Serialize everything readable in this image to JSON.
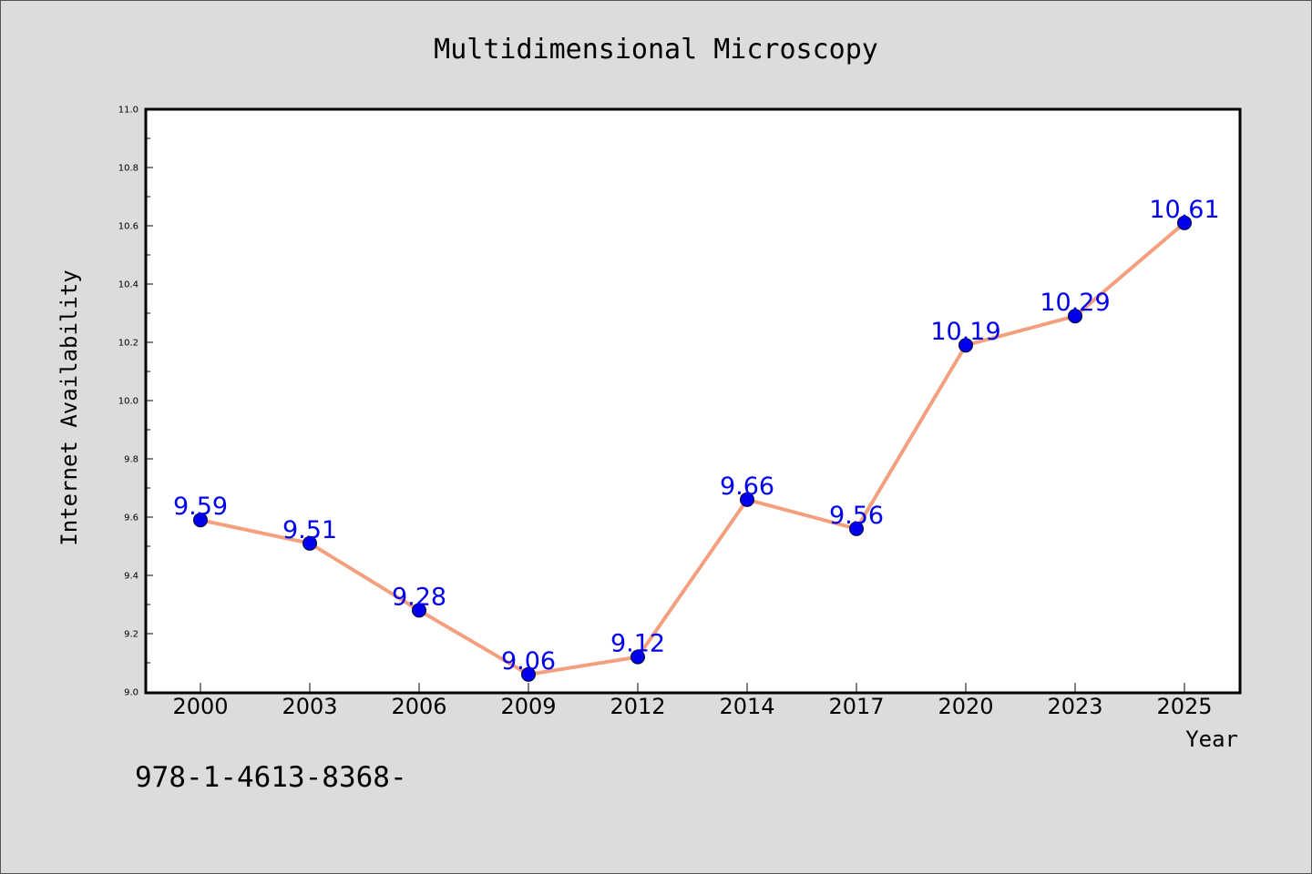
{
  "chart_data": {
    "type": "line",
    "title": "Multidimensional Microscopy",
    "xlabel": "Year",
    "ylabel": "Internet Availability",
    "categories": [
      "2000",
      "2003",
      "2006",
      "2009",
      "2012",
      "2014",
      "2017",
      "2020",
      "2023",
      "2025"
    ],
    "series": [
      {
        "values": [
          9.59,
          9.51,
          9.28,
          9.06,
          9.12,
          9.66,
          9.56,
          10.19,
          10.29,
          10.61
        ],
        "data_labels": [
          "9.59",
          "9.51",
          "9.28",
          "9.06",
          "9.12",
          "9.66",
          "9.56",
          "10.19",
          "10.29",
          "10.61"
        ],
        "line_color": "#f4a07e",
        "marker_color": "#0000ee",
        "label_color": "#0000ee"
      }
    ],
    "ylim": [
      9.0,
      11.0
    ],
    "yticks": [
      "9.0",
      "9.2",
      "9.4",
      "9.6",
      "9.8",
      "10.0",
      "10.2",
      "10.4",
      "10.6",
      "10.8",
      "11.0"
    ],
    "grid": false,
    "legend": "none"
  },
  "footer": {
    "isbn": "978-1-4613-8368-"
  },
  "colors": {
    "background": "#dcdcdc",
    "plot_area": "#ffffff"
  }
}
